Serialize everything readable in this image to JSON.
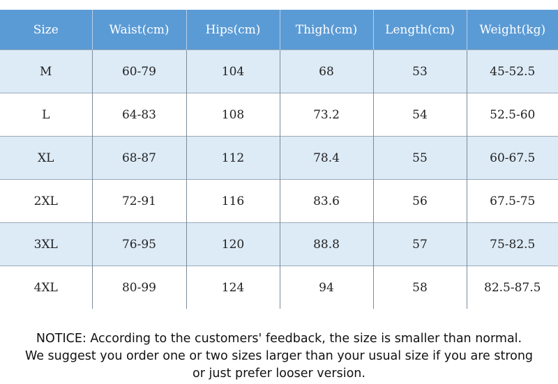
{
  "table": {
    "headers": [
      "Size",
      "Waist(cm)",
      "Hips(cm)",
      "Thigh(cm)",
      "Length(cm)",
      "Weight(kg)"
    ],
    "rows": [
      [
        "M",
        "60-79",
        "104",
        "68",
        "53",
        "45-52.5"
      ],
      [
        "L",
        "64-83",
        "108",
        "73.2",
        "54",
        "52.5-60"
      ],
      [
        "XL",
        "68-87",
        "112",
        "78.4",
        "55",
        "60-67.5"
      ],
      [
        "2XL",
        "72-91",
        "116",
        "83.6",
        "56",
        "67.5-75"
      ],
      [
        "3XL",
        "76-95",
        "120",
        "88.8",
        "57",
        "75-82.5"
      ],
      [
        "4XL",
        "80-99",
        "124",
        "94",
        "58",
        "82.5-87.5"
      ]
    ]
  },
  "notice": {
    "lines": [
      "NOTICE: According to the customers' feedback, the size is smaller than normal.",
      "We suggest you order one or two sizes larger than your usual size if you are strong",
      "or just prefer looser version."
    ]
  },
  "colors": {
    "header_bg": "#5b9bd5",
    "header_text": "#ffffff",
    "row_alt_bg": "#ddebf7",
    "row_bg": "#ffffff"
  }
}
